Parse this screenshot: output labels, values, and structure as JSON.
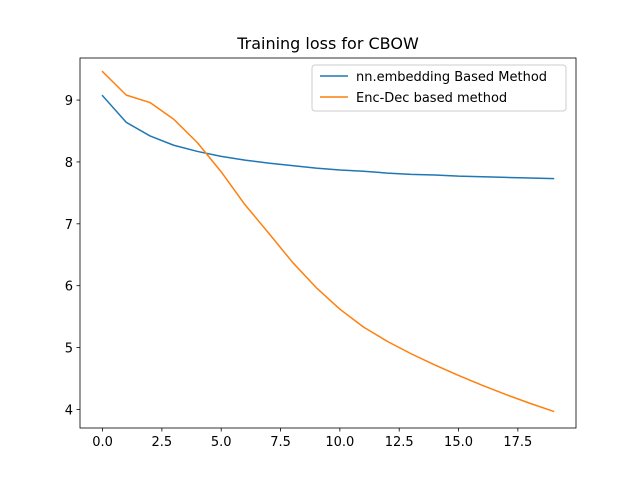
{
  "chart_data": {
    "type": "line",
    "title": "Training loss for CBOW",
    "xlabel": "",
    "ylabel": "",
    "xlim": [
      -0.95,
      19.95
    ],
    "ylim": [
      3.7,
      9.68
    ],
    "xticks": [
      0,
      2.5,
      5,
      7.5,
      10,
      12.5,
      15,
      17.5
    ],
    "xtick_labels": [
      "0.0",
      "2.5",
      "5.0",
      "7.5",
      "10.0",
      "12.5",
      "15.0",
      "17.5"
    ],
    "yticks": [
      4,
      5,
      6,
      7,
      8,
      9
    ],
    "ytick_labels": [
      "4",
      "5",
      "6",
      "7",
      "8",
      "9"
    ],
    "grid": false,
    "legend_position": "top-right",
    "x": [
      0,
      1,
      2,
      3,
      4,
      5,
      6,
      7,
      8,
      9,
      10,
      11,
      12,
      13,
      14,
      15,
      16,
      17,
      18,
      19
    ],
    "series": [
      {
        "name": "nn.embedding Based Method",
        "color": "#1f77b4",
        "values": [
          9.07,
          8.64,
          8.42,
          8.27,
          8.17,
          8.09,
          8.03,
          7.98,
          7.94,
          7.9,
          7.87,
          7.85,
          7.82,
          7.8,
          7.79,
          7.77,
          7.76,
          7.75,
          7.74,
          7.73
        ]
      },
      {
        "name": "Enc-Dec based method",
        "color": "#ff7f0e",
        "values": [
          9.46,
          9.08,
          8.96,
          8.69,
          8.31,
          7.84,
          7.31,
          6.85,
          6.38,
          5.97,
          5.62,
          5.33,
          5.1,
          4.9,
          4.72,
          4.55,
          4.39,
          4.24,
          4.1,
          3.97
        ]
      }
    ]
  }
}
